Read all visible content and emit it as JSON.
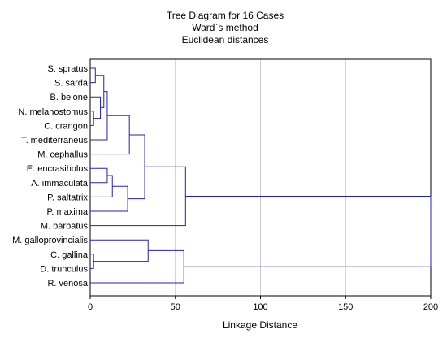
{
  "chart_data": {
    "type": "dendrogram",
    "title_lines": [
      "Tree Diagram for 16 Cases",
      "Ward`s method",
      "Euclidean distances"
    ],
    "xlabel": "Linkage Distance",
    "xlim": [
      0,
      200
    ],
    "xticks": [
      0,
      50,
      100,
      150,
      200
    ],
    "grid": "vertical",
    "colors": {
      "line": "#2020c0",
      "grid": "#c8c8c8",
      "frame": "#000000"
    },
    "leaves": [
      "S. spratus",
      "S. sarda",
      "B. belone",
      "N. melanostomus",
      "C. crangon",
      "T. mediterraneus",
      "M. cephallus",
      "E. encrasiholus",
      "A. immaculata",
      "P. saltatrix",
      "P. maxima",
      "M. barbatus",
      "M. galloprovincialis",
      "C. gallina",
      "D. trunculus",
      "R. venosa"
    ],
    "merges": [
      {
        "id": "a",
        "children": [
          "S. spratus",
          "S. sarda"
        ],
        "distance": 3
      },
      {
        "id": "b",
        "children": [
          "N. melanostomus",
          "C. crangon"
        ],
        "distance": 2
      },
      {
        "id": "c",
        "children": [
          "B. belone",
          "b"
        ],
        "distance": 6
      },
      {
        "id": "d",
        "children": [
          "a",
          "c"
        ],
        "distance": 8
      },
      {
        "id": "e",
        "children": [
          "d",
          "T. mediterraneus"
        ],
        "distance": 10
      },
      {
        "id": "f",
        "children": [
          "e",
          "M. cephallus"
        ],
        "distance": 23
      },
      {
        "id": "g",
        "children": [
          "E. encrasiholus",
          "A. immaculata"
        ],
        "distance": 10
      },
      {
        "id": "h",
        "children": [
          "g",
          "P. saltatrix"
        ],
        "distance": 13
      },
      {
        "id": "i",
        "children": [
          "h",
          "P. maxima"
        ],
        "distance": 22
      },
      {
        "id": "j",
        "children": [
          "f",
          "i"
        ],
        "distance": 32
      },
      {
        "id": "k",
        "children": [
          "j",
          "M. barbatus"
        ],
        "distance": 56
      },
      {
        "id": "l",
        "children": [
          "C. gallina",
          "D. trunculus"
        ],
        "distance": 2
      },
      {
        "id": "m",
        "children": [
          "M. galloprovincialis",
          "l"
        ],
        "distance": 34
      },
      {
        "id": "n",
        "children": [
          "m",
          "R. venosa"
        ],
        "distance": 55
      },
      {
        "id": "o",
        "children": [
          "k",
          "n"
        ],
        "distance": 200
      }
    ]
  }
}
